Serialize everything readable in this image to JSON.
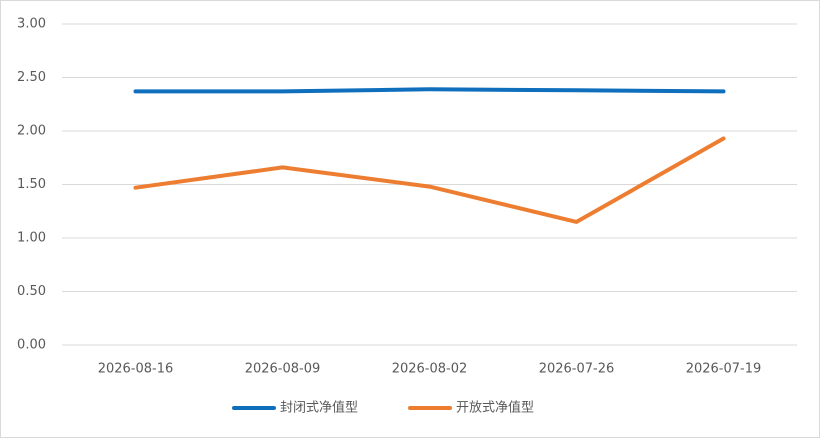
{
  "chart_data": {
    "type": "line",
    "categories": [
      "2026-08-16",
      "2026-08-09",
      "2026-08-02",
      "2026-07-26",
      "2026-07-19"
    ],
    "series": [
      {
        "name": "封闭式净值型",
        "color": "#0f6fbd",
        "values": [
          2.37,
          2.37,
          2.39,
          2.38,
          2.37
        ]
      },
      {
        "name": "开放式净值型",
        "color": "#ed7d31",
        "values": [
          1.47,
          1.66,
          1.48,
          1.15,
          1.93
        ]
      }
    ],
    "ylim": [
      0,
      3
    ],
    "yticks": [
      {
        "value": 0,
        "label": "0.00"
      },
      {
        "value": 0.5,
        "label": "0.50"
      },
      {
        "value": 1,
        "label": "1.00"
      },
      {
        "value": 1.5,
        "label": "1.50"
      },
      {
        "value": 2,
        "label": "2.00"
      },
      {
        "value": 2.5,
        "label": "2.50"
      },
      {
        "value": 3,
        "label": "3.00"
      }
    ],
    "grid": true,
    "legend": "bottom"
  }
}
